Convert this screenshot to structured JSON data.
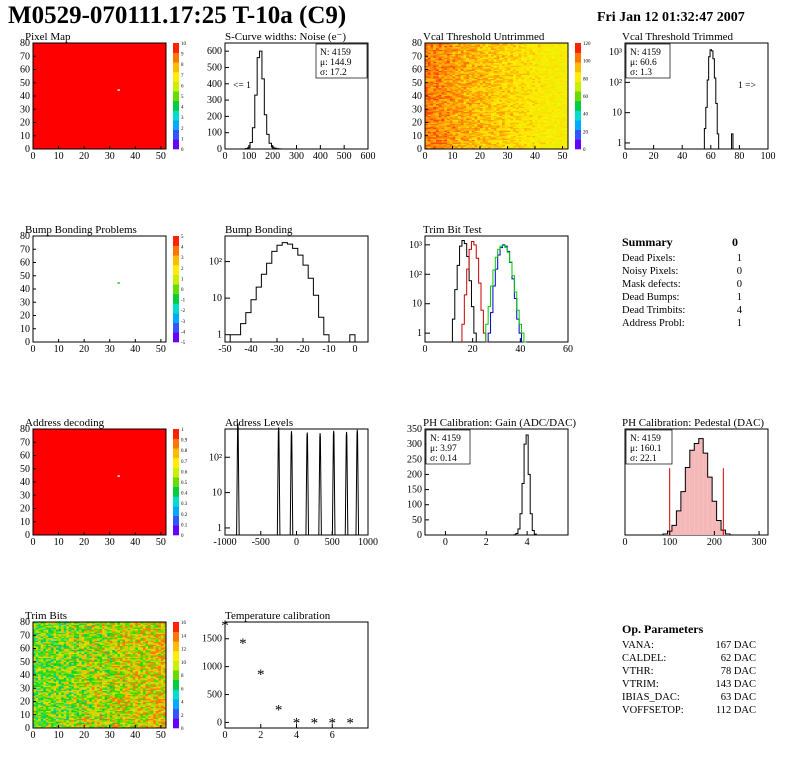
{
  "header": {
    "title": "M0529-070111.17:25 T-10a (C9)",
    "date": "Fri Jan 12 01:32:47 2007"
  },
  "colors": {
    "red": "#ff0000",
    "hist": "#000000",
    "trim_red": "#cc0000",
    "trim_green": "#00cc00",
    "trim_blue": "#0000cc"
  },
  "summary": {
    "title": "Summary",
    "value": "0",
    "rows": [
      {
        "label": "Dead Pixels:",
        "value": "1"
      },
      {
        "label": "Noisy Pixels:",
        "value": "0"
      },
      {
        "label": "Mask defects:",
        "value": "0"
      },
      {
        "label": "Dead Bumps:",
        "value": "1"
      },
      {
        "label": "Dead Trimbits:",
        "value": "4"
      },
      {
        "label": "Address Probl:",
        "value": "1"
      }
    ]
  },
  "op_parameters": {
    "title": "Op. Parameters",
    "rows": [
      {
        "label": "VANA:",
        "value": "167 DAC"
      },
      {
        "label": "CALDEL:",
        "value": "62 DAC"
      },
      {
        "label": "VTHR:",
        "value": "78 DAC"
      },
      {
        "label": "VTRIM:",
        "value": "143 DAC"
      },
      {
        "label": "IBIAS_DAC:",
        "value": "63 DAC"
      },
      {
        "label": "VOFFSETOP:",
        "value": "112 DAC"
      }
    ]
  },
  "chart_data": [
    {
      "id": "pixel-map",
      "type": "heatmap",
      "title": "Pixel Map",
      "xlim": [
        0,
        52
      ],
      "ylim": [
        0,
        80
      ],
      "xticks": [
        "0",
        "10",
        "20",
        "30",
        "40",
        "50"
      ],
      "yticks": [
        "0",
        "10",
        "20",
        "30",
        "40",
        "50",
        "60",
        "70",
        "80"
      ],
      "zticks": [
        "0",
        "1",
        "2",
        "3",
        "4",
        "5",
        "6",
        "7",
        "8",
        "9",
        "10"
      ],
      "fill": "uniform red (value 10)",
      "special_pixel": [
        33,
        44
      ]
    },
    {
      "id": "scurve-noise",
      "type": "histogram",
      "title": "S-Curve widths: Noise (e⁻)",
      "xlim": [
        0,
        600
      ],
      "ylim": [
        0,
        650
      ],
      "xticks": [
        "0",
        "100",
        "200",
        "300",
        "400",
        "500",
        "600"
      ],
      "yticks": [
        "0",
        "100",
        "200",
        "300",
        "400",
        "500",
        "600"
      ],
      "stats": [
        "N: 4159",
        "μ: 144.9",
        "σ: 17.2"
      ],
      "annotation": "<= 1",
      "x": [
        80,
        90,
        100,
        110,
        120,
        130,
        140,
        150,
        160,
        170,
        180,
        190,
        200,
        210,
        220,
        230,
        240,
        250
      ],
      "values": [
        0,
        2,
        8,
        40,
        130,
        330,
        560,
        600,
        430,
        210,
        90,
        35,
        12,
        5,
        2,
        1,
        0,
        0
      ]
    },
    {
      "id": "vcal-untrimmed",
      "type": "heatmap",
      "title": "Vcal Threshold Untrimmed",
      "xlim": [
        0,
        52
      ],
      "ylim": [
        0,
        80
      ],
      "xticks": [
        "0",
        "10",
        "20",
        "30",
        "40",
        "50"
      ],
      "yticks": [
        "0",
        "10",
        "20",
        "30",
        "40",
        "50",
        "60",
        "70",
        "80"
      ],
      "zticks": [
        "0",
        "20",
        "40",
        "60",
        "80",
        "100",
        "120"
      ],
      "fill": "orange-to-yellow gradient, orange at low x"
    },
    {
      "id": "vcal-trimmed",
      "type": "histogram",
      "title": "Vcal Threshold Trimmed",
      "xlim": [
        0,
        100
      ],
      "yscale": "log",
      "xticks": [
        "0",
        "20",
        "40",
        "60",
        "80",
        "100"
      ],
      "yticks": [
        "1",
        "10",
        "10²",
        "10³"
      ],
      "stats": [
        "N: 4159",
        "μ: 60.6",
        "σ: 1.3"
      ],
      "annotation": "1 =>",
      "x": [
        55,
        56,
        57,
        58,
        59,
        60,
        61,
        62,
        63,
        64,
        65,
        66,
        67,
        68,
        69,
        70,
        71,
        72,
        73,
        74,
        75
      ],
      "values": [
        0,
        3,
        15,
        120,
        700,
        1200,
        1100,
        600,
        140,
        20,
        2,
        0,
        0,
        0,
        0,
        0,
        0,
        0,
        0,
        0,
        2
      ]
    },
    {
      "id": "bump-problems",
      "type": "heatmap",
      "title": "Bump Bonding Problems",
      "xlim": [
        0,
        52
      ],
      "ylim": [
        0,
        80
      ],
      "xticks": [
        "0",
        "10",
        "20",
        "30",
        "40",
        "50"
      ],
      "yticks": [
        "0",
        "10",
        "20",
        "30",
        "40",
        "50",
        "60",
        "70",
        "80"
      ],
      "zticks": [
        "-5",
        "-4",
        "-3",
        "-2",
        "-1",
        "0",
        "1",
        "2",
        "3",
        "4",
        "5"
      ],
      "fill": "empty",
      "special_pixel": [
        33,
        44
      ]
    },
    {
      "id": "bump-bonding",
      "type": "histogram",
      "title": "Bump Bonding",
      "xlim": [
        -50,
        5
      ],
      "yscale": "log",
      "xticks": [
        "-50",
        "-40",
        "-30",
        "-20",
        "-10",
        "0"
      ],
      "yticks": [
        "1",
        "10",
        "10²"
      ],
      "x": [
        -47,
        -45,
        -43,
        -41,
        -39,
        -37,
        -35,
        -33,
        -31,
        -29,
        -27,
        -25,
        -23,
        -21,
        -19,
        -17,
        -15,
        -13,
        -11,
        -9,
        -7,
        -5,
        -3,
        -1,
        1
      ],
      "values": [
        1,
        1,
        2,
        4,
        9,
        20,
        45,
        90,
        190,
        280,
        330,
        300,
        230,
        150,
        80,
        35,
        12,
        3,
        1,
        0,
        0,
        0,
        0,
        1,
        0
      ]
    },
    {
      "id": "trim-bit-test",
      "type": "histogram",
      "title": "Trim Bit Test",
      "xlim": [
        0,
        60
      ],
      "yscale": "log",
      "xticks": [
        "0",
        "20",
        "40",
        "60"
      ],
      "yticks": [
        "1",
        "10",
        "10²",
        "10³"
      ],
      "series": [
        {
          "name": "trim bit 1",
          "color": "#000000",
          "x": [
            12,
            13,
            14,
            15,
            16,
            17,
            18,
            19,
            20,
            21,
            22
          ],
          "values": [
            3,
            30,
            200,
            900,
            1400,
            1100,
            400,
            60,
            8,
            1,
            0
          ]
        },
        {
          "name": "trim bit 2",
          "color": "#cc0000",
          "x": [
            16,
            17,
            18,
            19,
            20,
            21,
            22,
            23,
            24,
            25,
            26
          ],
          "values": [
            2,
            20,
            150,
            700,
            1300,
            1000,
            350,
            50,
            6,
            1,
            0
          ]
        },
        {
          "name": "trim bit 3",
          "color": "#0000cc",
          "x": [
            27,
            28,
            29,
            30,
            31,
            32,
            33,
            34,
            35,
            36,
            37,
            38,
            39,
            40,
            41
          ],
          "values": [
            1,
            5,
            40,
            150,
            450,
            800,
            1000,
            900,
            600,
            250,
            70,
            15,
            3,
            1,
            0
          ]
        },
        {
          "name": "trim bit 4",
          "color": "#00cc00",
          "x": [
            26,
            27,
            28,
            29,
            30,
            31,
            32,
            33,
            34,
            35,
            36,
            37,
            38,
            39,
            40,
            41,
            42
          ],
          "values": [
            2,
            8,
            40,
            140,
            380,
            700,
            900,
            950,
            820,
            560,
            260,
            90,
            25,
            6,
            2,
            1,
            0
          ]
        }
      ]
    },
    {
      "id": "address-decoding",
      "type": "heatmap",
      "title": "Address decoding",
      "xlim": [
        0,
        52
      ],
      "ylim": [
        0,
        80
      ],
      "xticks": [
        "0",
        "10",
        "20",
        "30",
        "40",
        "50"
      ],
      "yticks": [
        "0",
        "10",
        "20",
        "30",
        "40",
        "50",
        "60",
        "70",
        "80"
      ],
      "zticks": [
        "0",
        "0.1",
        "0.2",
        "0.3",
        "0.4",
        "0.5",
        "0.6",
        "0.7",
        "0.8",
        "0.9",
        "1"
      ],
      "fill": "uniform red (value 1)",
      "special_pixel": [
        33,
        44
      ]
    },
    {
      "id": "address-levels",
      "type": "histogram",
      "title": "Address Levels",
      "xlim": [
        -1000,
        1000
      ],
      "yscale": "log",
      "xticks": [
        "-1000",
        "-500",
        "0",
        "500",
        "1000"
      ],
      "yticks": [
        "1",
        "10",
        "10²"
      ],
      "peaks": [
        -820,
        -250,
        -70,
        150,
        330,
        520,
        700,
        850
      ],
      "peak_heights": [
        900,
        700,
        550,
        500,
        480,
        560,
        520,
        600
      ]
    },
    {
      "id": "ph-gain",
      "type": "histogram",
      "title": "PH Calibration: Gain (ADC/DAC)",
      "xlim": [
        -1,
        6
      ],
      "ylim": [
        0,
        350
      ],
      "xticks": [
        "0",
        "2",
        "4"
      ],
      "yticks": [
        "0",
        "50",
        "100",
        "150",
        "200",
        "250",
        "300",
        "350"
      ],
      "stats": [
        "N: 4159",
        "μ: 3.97",
        "σ: 0.14"
      ],
      "x": [
        3.4,
        3.5,
        3.6,
        3.7,
        3.8,
        3.9,
        4.0,
        4.1,
        4.2,
        4.3,
        4.4,
        4.5
      ],
      "values": [
        1,
        5,
        20,
        70,
        170,
        300,
        330,
        200,
        70,
        15,
        3,
        0
      ]
    },
    {
      "id": "ph-pedestal",
      "type": "histogram",
      "title": "PH Calibration: Pedestal (DAC)",
      "xlim": [
        0,
        320
      ],
      "ylim": [
        0,
        110
      ],
      "xticks": [
        "0",
        "100",
        "200",
        "300"
      ],
      "stats": [
        "N: 4159",
        "μ: 160.1",
        "σ: 22.1"
      ],
      "fit_markers": [
        100,
        220
      ],
      "x": [
        90,
        100,
        110,
        120,
        130,
        140,
        150,
        160,
        170,
        180,
        190,
        200,
        210,
        220,
        230
      ],
      "values": [
        1,
        4,
        10,
        25,
        45,
        70,
        88,
        95,
        100,
        85,
        60,
        35,
        15,
        5,
        1
      ]
    },
    {
      "id": "trim-bits",
      "type": "heatmap",
      "title": "Trim Bits",
      "xlim": [
        0,
        52
      ],
      "ylim": [
        0,
        80
      ],
      "xticks": [
        "0",
        "10",
        "20",
        "30",
        "40",
        "50"
      ],
      "yticks": [
        "0",
        "10",
        "20",
        "30",
        "40",
        "50",
        "60",
        "70",
        "80"
      ],
      "zticks": [
        "0",
        "2",
        "4",
        "6",
        "8",
        "10",
        "12",
        "14",
        "16"
      ],
      "fill": "green noise, yellowish at high x"
    },
    {
      "id": "temperature-calibration",
      "type": "scatter",
      "title": "Temperature calibration",
      "xlim": [
        0,
        8
      ],
      "ylim": [
        -100,
        1800
      ],
      "xticks": [
        "0",
        "2",
        "4",
        "6"
      ],
      "yticks": [
        "0",
        "500",
        "1000",
        "1500"
      ],
      "x": [
        0,
        1,
        2,
        3,
        4,
        5,
        6,
        7
      ],
      "values": [
        1750,
        1420,
        870,
        230,
        -5,
        -5,
        -5,
        -5
      ]
    }
  ]
}
